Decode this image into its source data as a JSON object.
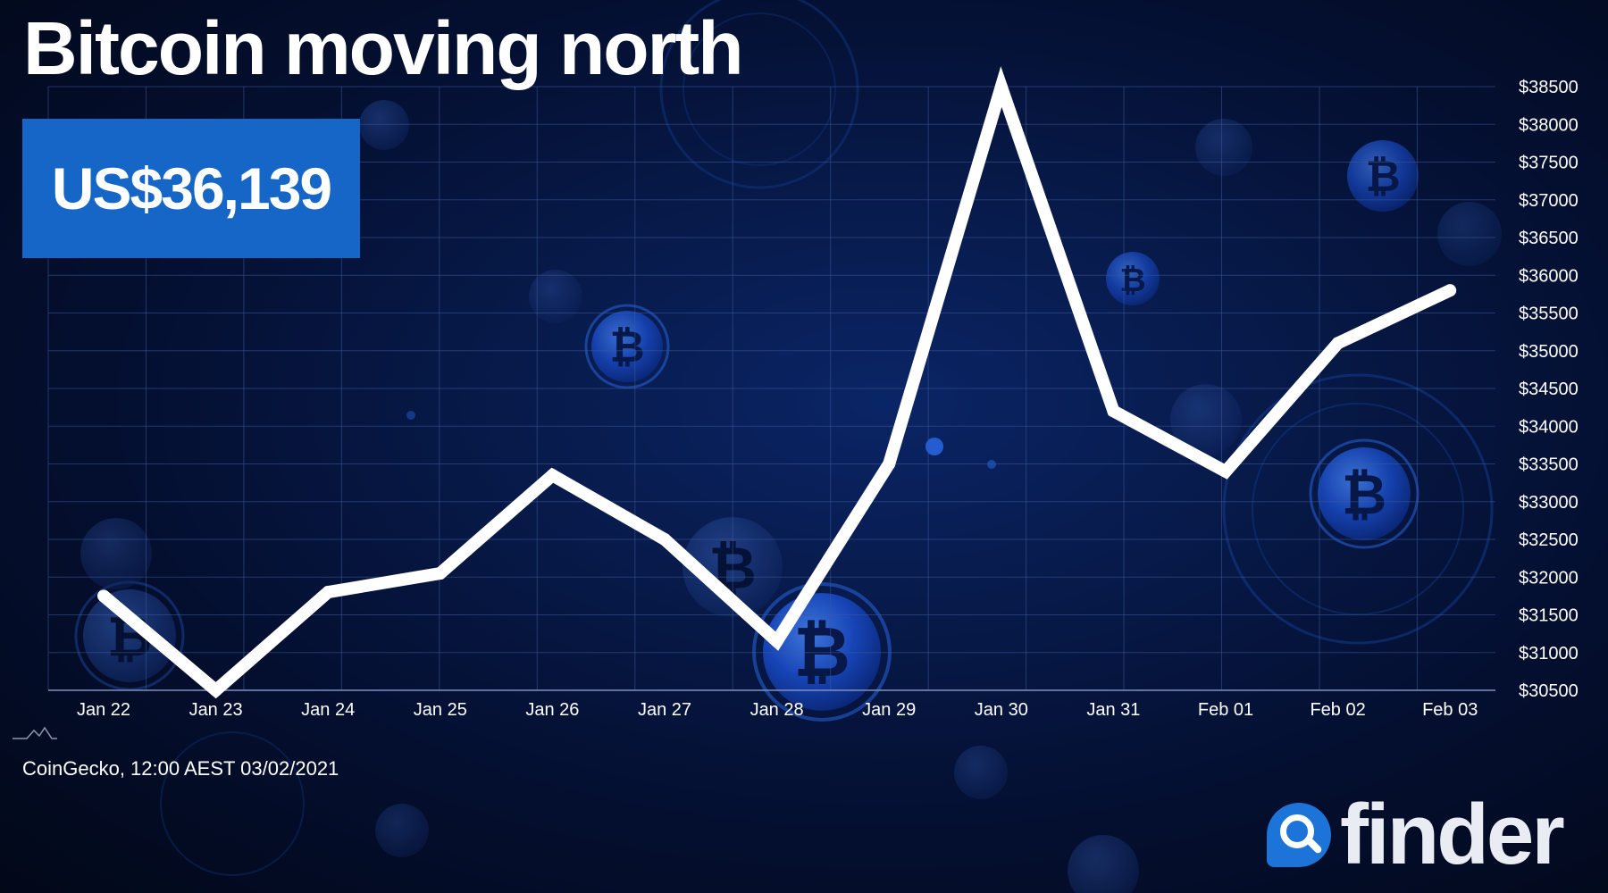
{
  "header": {
    "title": "Bitcoin moving north",
    "price_badge": "US$36,139"
  },
  "footer": {
    "source_note": "CoinGecko, 12:00 AEST 03/02/2021",
    "brand": "finder"
  },
  "colors": {
    "line": "#ffffff",
    "grid": "#3d5a9a",
    "badge": "#1666c8",
    "brand_mark": "#1d74d8",
    "background": "#040f30"
  },
  "chart_data": {
    "type": "line",
    "title": "Bitcoin moving north",
    "x": [
      "Jan 22",
      "Jan 23",
      "Jan 24",
      "Jan 25",
      "Jan 26",
      "Jan 27",
      "Jan 28",
      "Jan 29",
      "Jan 30",
      "Jan 31",
      "Feb 01",
      "Feb 02",
      "Feb 03"
    ],
    "series": [
      {
        "values": [
          31750,
          30500,
          31800,
          32050,
          33350,
          32500,
          31150,
          33500,
          38500,
          34200,
          33400,
          35100,
          35800
        ]
      }
    ],
    "y_ticks": [
      "$30500",
      "$31000",
      "$31500",
      "$32000",
      "$32500",
      "$33000",
      "$33500",
      "$34000",
      "$34500",
      "$35000",
      "$35500",
      "$36000",
      "$36500",
      "$37000",
      "$37500",
      "$38000",
      "$38500"
    ],
    "ylim": [
      30500,
      38500
    ],
    "y_axis_position": "right",
    "grid": true,
    "legend": "none"
  }
}
